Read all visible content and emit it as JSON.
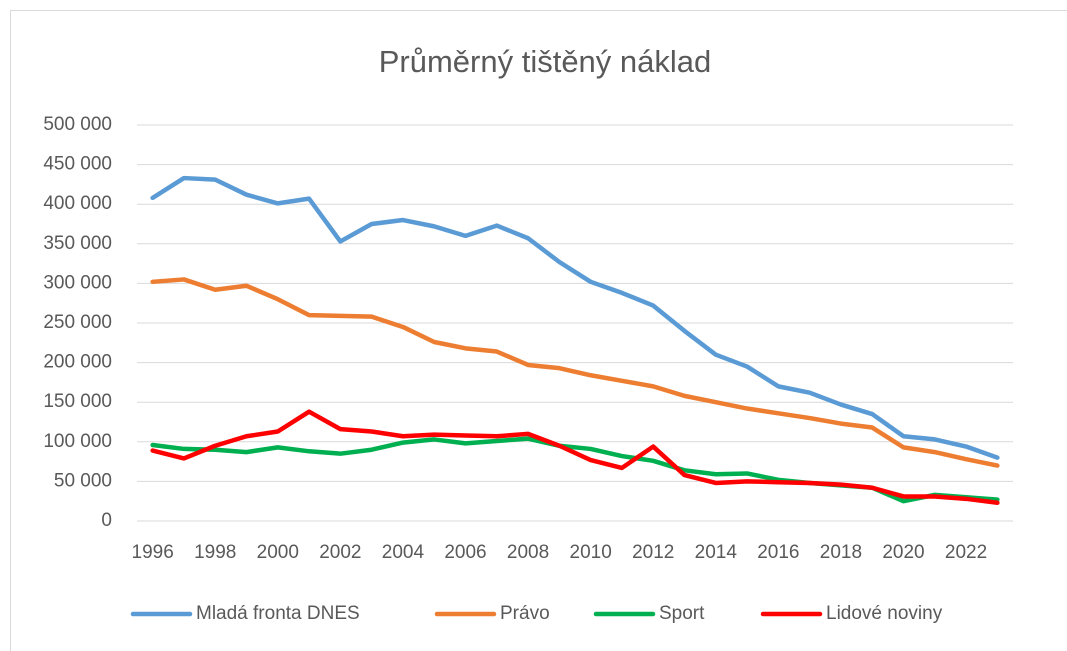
{
  "chart_data": {
    "type": "line",
    "title": "Průměrný tištěný náklad",
    "x": [
      1996,
      1997,
      1998,
      1999,
      2000,
      2001,
      2002,
      2003,
      2004,
      2005,
      2006,
      2007,
      2008,
      2009,
      2010,
      2011,
      2012,
      2013,
      2014,
      2015,
      2016,
      2017,
      2018,
      2019,
      2020,
      2021,
      2022,
      2023
    ],
    "xlim": [
      1995.5,
      2023.5
    ],
    "xticks": [
      1996,
      1998,
      2000,
      2002,
      2004,
      2006,
      2008,
      2010,
      2012,
      2014,
      2016,
      2018,
      2020,
      2022
    ],
    "ylim": [
      0,
      500000
    ],
    "yticks": [
      0,
      {
        "value": 50000,
        "label": "50 000"
      },
      {
        "value": 100000,
        "label": "100 000"
      },
      {
        "value": 150000,
        "label": "150 000"
      },
      {
        "value": 200000,
        "label": "200 000"
      },
      {
        "value": 250000,
        "label": "250 000"
      },
      {
        "value": 300000,
        "label": "300 000"
      },
      {
        "value": 350000,
        "label": "350 000"
      },
      {
        "value": 400000,
        "label": "400 000"
      },
      {
        "value": 450000,
        "label": "450 000"
      },
      {
        "value": 500000,
        "label": "500 000"
      }
    ],
    "grid": true,
    "legend": "bottom",
    "series": [
      {
        "name": "Mladá fronta DNES",
        "color": "#5b9bd5",
        "values": [
          408000,
          433000,
          431000,
          412000,
          401000,
          407000,
          353000,
          375000,
          380000,
          372000,
          360000,
          373000,
          357000,
          327000,
          302000,
          288000,
          272000,
          240000,
          210000,
          195000,
          170000,
          162000,
          147000,
          135000,
          107000,
          103000,
          94000,
          80000
        ]
      },
      {
        "name": "Právo",
        "color": "#ed7d31",
        "values": [
          302000,
          305000,
          292000,
          297000,
          280000,
          260000,
          259000,
          258000,
          245000,
          226000,
          218000,
          214000,
          197000,
          193000,
          184000,
          177000,
          170000,
          158000,
          150000,
          142000,
          136000,
          130000,
          123000,
          118000,
          93000,
          87000,
          78000,
          70000
        ]
      },
      {
        "name": "Sport",
        "color": "#00b050",
        "values": [
          96000,
          91000,
          90000,
          87000,
          93000,
          88000,
          85000,
          90000,
          99000,
          103000,
          98000,
          101000,
          104000,
          95000,
          91000,
          82000,
          76000,
          64000,
          59000,
          60000,
          52000,
          48000,
          45000,
          42000,
          25000,
          33000,
          30000,
          27000
        ]
      },
      {
        "name": "Lidové noviny",
        "color": "#ff0000",
        "values": [
          89000,
          79000,
          95000,
          107000,
          113000,
          138000,
          116000,
          113000,
          107000,
          109000,
          108000,
          107000,
          110000,
          95000,
          77000,
          67000,
          94000,
          58000,
          48000,
          50000,
          49000,
          48000,
          46000,
          42000,
          31000,
          31000,
          28000,
          23000
        ]
      }
    ]
  }
}
